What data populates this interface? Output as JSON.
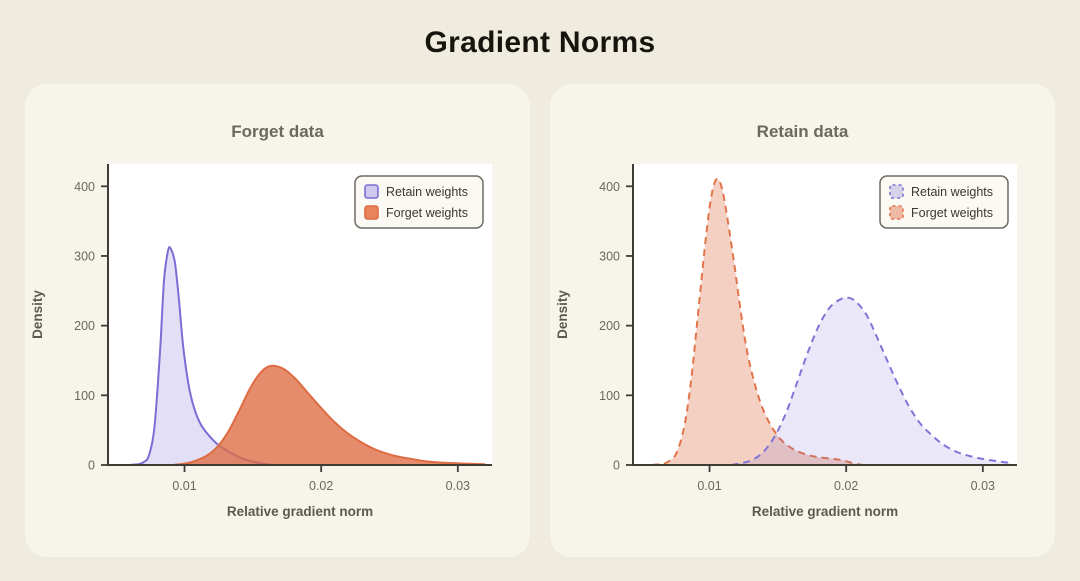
{
  "page": {
    "title": "Gradient Norms"
  },
  "colors": {
    "page_background": "#EFEBDF",
    "card_background": "#F7F4EC",
    "plot_background": "#FFFFFF",
    "axis": "#3F3B35",
    "retain_accent": "#7C6DD4",
    "forget_accent": "#DE6C42"
  },
  "chart_data": [
    {
      "type": "area",
      "title": "Forget data",
      "xlabel": "Relative gradient norm",
      "ylabel": "Density",
      "xlim": [
        0.0044,
        0.0325
      ],
      "ylim": [
        0,
        432
      ],
      "grid": false,
      "legend_position": "upper right",
      "xticks": [
        {
          "v": 0.01,
          "label": "0.01"
        },
        {
          "v": 0.02,
          "label": "0.02"
        },
        {
          "v": 0.03,
          "label": "0.03"
        }
      ],
      "yticks": [
        {
          "v": 0,
          "label": "0"
        },
        {
          "v": 100,
          "label": "100"
        },
        {
          "v": 200,
          "label": "200"
        },
        {
          "v": 300,
          "label": "300"
        },
        {
          "v": 400,
          "label": "400"
        }
      ],
      "legend": [
        "Retain weights",
        "Forget weights"
      ],
      "series": [
        {
          "name": "Retain weights",
          "line_style": "solid",
          "color": "#7C6DD4",
          "fill": "rgba(124,109,212,0.22)",
          "legend_fill": "#CFC9F0",
          "points": [
            [
              0.006,
              0
            ],
            [
              0.0066,
              1
            ],
            [
              0.007,
              4
            ],
            [
              0.0074,
              14
            ],
            [
              0.0078,
              55
            ],
            [
              0.0082,
              160
            ],
            [
              0.0085,
              265
            ],
            [
              0.0088,
              308
            ],
            [
              0.009,
              310
            ],
            [
              0.0093,
              290
            ],
            [
              0.0096,
              235
            ],
            [
              0.0099,
              170
            ],
            [
              0.0103,
              115
            ],
            [
              0.0107,
              82
            ],
            [
              0.0112,
              58
            ],
            [
              0.0118,
              42
            ],
            [
              0.0124,
              30
            ],
            [
              0.013,
              22
            ],
            [
              0.0137,
              14
            ],
            [
              0.0144,
              8
            ],
            [
              0.0152,
              4
            ],
            [
              0.016,
              1
            ],
            [
              0.0164,
              0
            ]
          ]
        },
        {
          "name": "Forget weights",
          "line_style": "solid",
          "color": "#DE6C42",
          "fill": "rgba(222,108,66,0.78)",
          "legend_fill": "#E9835B",
          "points": [
            [
              0.0092,
              0
            ],
            [
              0.01,
              2
            ],
            [
              0.0108,
              6
            ],
            [
              0.0116,
              13
            ],
            [
              0.0124,
              26
            ],
            [
              0.0132,
              48
            ],
            [
              0.014,
              78
            ],
            [
              0.0148,
              110
            ],
            [
              0.0155,
              131
            ],
            [
              0.0161,
              141
            ],
            [
              0.0167,
              142
            ],
            [
              0.0174,
              136
            ],
            [
              0.0182,
              122
            ],
            [
              0.019,
              104
            ],
            [
              0.0199,
              84
            ],
            [
              0.0209,
              63
            ],
            [
              0.0219,
              46
            ],
            [
              0.0229,
              33
            ],
            [
              0.024,
              22
            ],
            [
              0.0252,
              14
            ],
            [
              0.0265,
              9
            ],
            [
              0.0278,
              5
            ],
            [
              0.0292,
              3
            ],
            [
              0.0306,
              2
            ],
            [
              0.032,
              1
            ]
          ]
        }
      ]
    },
    {
      "type": "area",
      "title": "Retain data",
      "xlabel": "Relative gradient norm",
      "ylabel": "Density",
      "xlim": [
        0.0044,
        0.0325
      ],
      "ylim": [
        0,
        432
      ],
      "grid": false,
      "legend_position": "upper right",
      "xticks": [
        {
          "v": 0.01,
          "label": "0.01"
        },
        {
          "v": 0.02,
          "label": "0.02"
        },
        {
          "v": 0.03,
          "label": "0.03"
        }
      ],
      "yticks": [
        {
          "v": 0,
          "label": "0"
        },
        {
          "v": 100,
          "label": "100"
        },
        {
          "v": 200,
          "label": "200"
        },
        {
          "v": 300,
          "label": "300"
        },
        {
          "v": 400,
          "label": "400"
        }
      ],
      "legend": [
        "Retain weights",
        "Forget weights"
      ],
      "series": [
        {
          "name": "Forget weights",
          "line_style": "dashed",
          "dash": "7 5",
          "color": "#E2744B",
          "fill": "rgba(222,108,66,0.32)",
          "legend_fill": "rgba(222,108,66,0.45)",
          "points": [
            [
              0.0058,
              0
            ],
            [
              0.0064,
              1
            ],
            [
              0.007,
              5
            ],
            [
              0.0076,
              18
            ],
            [
              0.0082,
              60
            ],
            [
              0.0087,
              130
            ],
            [
              0.0092,
              225
            ],
            [
              0.0097,
              320
            ],
            [
              0.0101,
              382
            ],
            [
              0.0105,
              410
            ],
            [
              0.0109,
              398
            ],
            [
              0.0113,
              355
            ],
            [
              0.0118,
              290
            ],
            [
              0.0123,
              218
            ],
            [
              0.0128,
              158
            ],
            [
              0.0134,
              110
            ],
            [
              0.014,
              76
            ],
            [
              0.0147,
              50
            ],
            [
              0.0154,
              33
            ],
            [
              0.0162,
              22
            ],
            [
              0.0171,
              15
            ],
            [
              0.018,
              11
            ],
            [
              0.019,
              9
            ],
            [
              0.0199,
              6
            ],
            [
              0.0206,
              2
            ],
            [
              0.0212,
              0
            ]
          ]
        },
        {
          "name": "Retain weights",
          "line_style": "dashed",
          "dash": "7 5",
          "color": "#8274D6",
          "fill": "rgba(124,109,212,0.16)",
          "legend_fill": "rgba(124,109,212,0.28)",
          "points": [
            [
              0.0116,
              0
            ],
            [
              0.0124,
              3
            ],
            [
              0.0132,
              8
            ],
            [
              0.014,
              20
            ],
            [
              0.0148,
              42
            ],
            [
              0.0156,
              75
            ],
            [
              0.0164,
              118
            ],
            [
              0.0172,
              162
            ],
            [
              0.018,
              200
            ],
            [
              0.0188,
              226
            ],
            [
              0.0196,
              238
            ],
            [
              0.0202,
              240
            ],
            [
              0.0208,
              233
            ],
            [
              0.0215,
              215
            ],
            [
              0.0222,
              186
            ],
            [
              0.023,
              150
            ],
            [
              0.0238,
              115
            ],
            [
              0.0246,
              84
            ],
            [
              0.0254,
              60
            ],
            [
              0.0263,
              42
            ],
            [
              0.0272,
              28
            ],
            [
              0.0282,
              18
            ],
            [
              0.0292,
              12
            ],
            [
              0.0302,
              8
            ],
            [
              0.0312,
              5
            ],
            [
              0.032,
              3
            ]
          ]
        }
      ]
    }
  ]
}
